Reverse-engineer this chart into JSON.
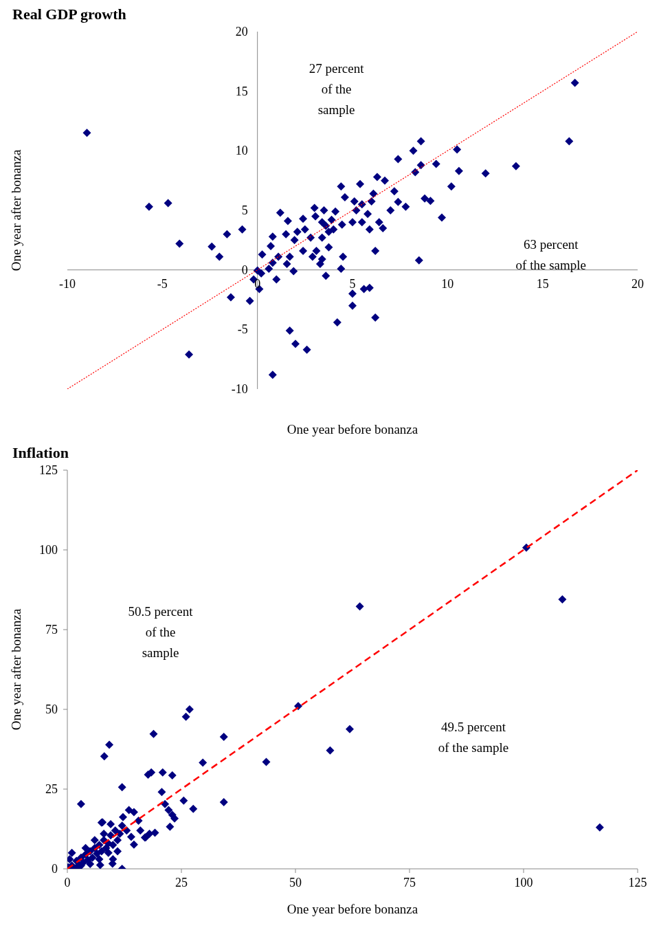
{
  "chart_data": [
    {
      "type": "scatter",
      "title": "Real GDP growth",
      "xlabel": "One year before bonanza",
      "ylabel": "One year after bonanza",
      "xlim": [
        -10,
        20
      ],
      "xticks": [
        -10,
        -5,
        0,
        5,
        10,
        15,
        20
      ],
      "ylim": [
        -10,
        20
      ],
      "yticks": [
        -10,
        -5,
        0,
        5,
        10,
        15,
        20
      ],
      "grid": false,
      "legend": false,
      "annotations": [
        "27 percent\nof the\nsample",
        "63 percent\nof the sample"
      ],
      "series": [
        {
          "type": "scatter",
          "marker": "diamond",
          "color": "#000080",
          "x": [
            -8.97,
            -5.7,
            -4.7,
            -4.1,
            -2.4,
            -2.0,
            -1.6,
            -0.8,
            -3.6,
            -1.4,
            -0.4,
            0.1,
            -0.2,
            0.2,
            0.8,
            1.7,
            2.0,
            2.6,
            4.2,
            5.0,
            5.0,
            5.6,
            5.9,
            6.2,
            16.7,
            16.4,
            13.6,
            12.0,
            10.6,
            10.5,
            10.2,
            9.7,
            9.4,
            9.1,
            8.8,
            8.6,
            8.2,
            8.6,
            8.3,
            8.5,
            7.4,
            7.8,
            7.4,
            7.0,
            7.2,
            6.7,
            6.3,
            6.2,
            5.4,
            4.4,
            4.6,
            3.5,
            3.0,
            4.1,
            2.4,
            1.95,
            1.5,
            1.2,
            1.6,
            0.8,
            0.7,
            0.25,
            1.1,
            0.8,
            0.6,
            0.0,
            1.0,
            1.9,
            3.6,
            4.4,
            4.5,
            3.3,
            3.1,
            2.8,
            3.4,
            3.75,
            4.0,
            4.45,
            5.0,
            5.5,
            5.9,
            6.4,
            6.6,
            5.8,
            5.5,
            6.0,
            5.1,
            5.2,
            6.1,
            3.4,
            3.75,
            2.5,
            2.1,
            2.4,
            2.9,
            3.4,
            1.7,
            1.55,
            3.9,
            3.05,
            3.6
          ],
          "values": [
            11.5,
            5.3,
            5.6,
            2.2,
            1.95,
            1.1,
            3.0,
            3.4,
            -7.1,
            -2.3,
            -2.6,
            -1.6,
            -0.8,
            -0.3,
            -8.8,
            -5.1,
            -6.2,
            -6.7,
            -4.4,
            -3.0,
            -2.0,
            -1.6,
            -1.5,
            -4.0,
            15.7,
            10.8,
            8.7,
            8.1,
            8.3,
            10.1,
            7.0,
            4.4,
            8.9,
            5.8,
            6.0,
            10.8,
            10.0,
            8.8,
            8.2,
            0.8,
            9.3,
            5.3,
            5.7,
            5.0,
            6.6,
            7.5,
            7.8,
            1.6,
            7.2,
            7.0,
            6.1,
            5.0,
            5.2,
            4.9,
            4.3,
            2.5,
            3.0,
            4.8,
            4.1,
            2.8,
            2.0,
            1.3,
            1.1,
            0.6,
            0.1,
            -0.05,
            -0.8,
            -0.1,
            -0.5,
            0.1,
            1.1,
            0.5,
            1.6,
            2.7,
            2.7,
            1.9,
            3.4,
            3.8,
            4.0,
            4.0,
            3.4,
            4.0,
            3.5,
            4.7,
            5.5,
            5.75,
            5.75,
            5.0,
            6.4,
            4.0,
            3.2,
            3.4,
            3.2,
            1.6,
            1.1,
            0.9,
            1.1,
            0.5,
            4.2,
            4.5,
            3.7
          ]
        },
        {
          "type": "line",
          "color": "#ff0000",
          "line_style": "dotted",
          "x": [
            -10,
            20
          ],
          "values": [
            -10,
            20
          ]
        }
      ]
    },
    {
      "type": "scatter",
      "title": "Inflation",
      "xlabel": "One year before bonanza",
      "ylabel": "One year after bonanza",
      "xlim": [
        0,
        125
      ],
      "xticks": [
        0,
        25,
        50,
        75,
        100,
        125
      ],
      "ylim": [
        0,
        125
      ],
      "yticks": [
        0,
        25,
        50,
        75,
        100,
        125
      ],
      "grid": false,
      "legend": false,
      "annotations": [
        "50.5 percent\nof the\nsample",
        "49.5 percent\nof the sample"
      ],
      "series": [
        {
          "type": "scatter",
          "marker": "diamond",
          "color": "#000080",
          "x": [
            100.6,
            108.5,
            116.7,
            64.1,
            50.6,
            61.9,
            57.6,
            43.6,
            34.3,
            34.3,
            26.8,
            26.0,
            18.9,
            9.2,
            8.1,
            29.7,
            17.7,
            18.4,
            20.9,
            23.0,
            12.0,
            3.0,
            20.7,
            25.5,
            27.6,
            21.4,
            22.2,
            23.0,
            22.5,
            23.5,
            13.5,
            14.6,
            15.6,
            7.7,
            12.2,
            17.2,
            19.2,
            14.6,
            12.0,
            9.9,
            7.2,
            1,
            0.5,
            2,
            2.5,
            3,
            3.5,
            4,
            4.5,
            5,
            5.5,
            6,
            6.5,
            7,
            7.5,
            8,
            8.5,
            9,
            9.5,
            10,
            10.5,
            11,
            11.5,
            12,
            8,
            6,
            4,
            3,
            0.2,
            1,
            2,
            5,
            7,
            9,
            10,
            11,
            13,
            14,
            9.5,
            7.5,
            16,
            18,
            17
          ],
          "values": [
            100.7,
            84.5,
            13.0,
            82.3,
            51.0,
            43.8,
            37.1,
            33.5,
            41.4,
            20.9,
            50.0,
            47.7,
            42.3,
            38.9,
            35.3,
            33.3,
            29.5,
            30.2,
            30.2,
            29.3,
            25.6,
            20.3,
            24.1,
            21.4,
            18.8,
            20.3,
            18.4,
            16.9,
            13.2,
            15.8,
            18.4,
            17.8,
            15.1,
            14.6,
            16.2,
            9.9,
            11.3,
            7.6,
            0,
            1.6,
            1.2,
            1,
            3,
            2.5,
            1.2,
            3.5,
            2,
            4.5,
            2.8,
            5.5,
            3.5,
            6.5,
            4.8,
            7.5,
            5.5,
            9,
            6.5,
            8,
            10.5,
            7.5,
            12,
            9,
            11,
            13.5,
            11,
            9,
            6.5,
            1,
            0.5,
            5,
            0.2,
            1.5,
            3,
            5,
            3,
            5.5,
            12,
            10,
            14,
            14.5,
            12,
            11,
            9.8
          ]
        },
        {
          "type": "line",
          "color": "#ff0000",
          "line_style": "dashed",
          "x": [
            0,
            125
          ],
          "values": [
            0,
            125
          ]
        }
      ]
    }
  ]
}
